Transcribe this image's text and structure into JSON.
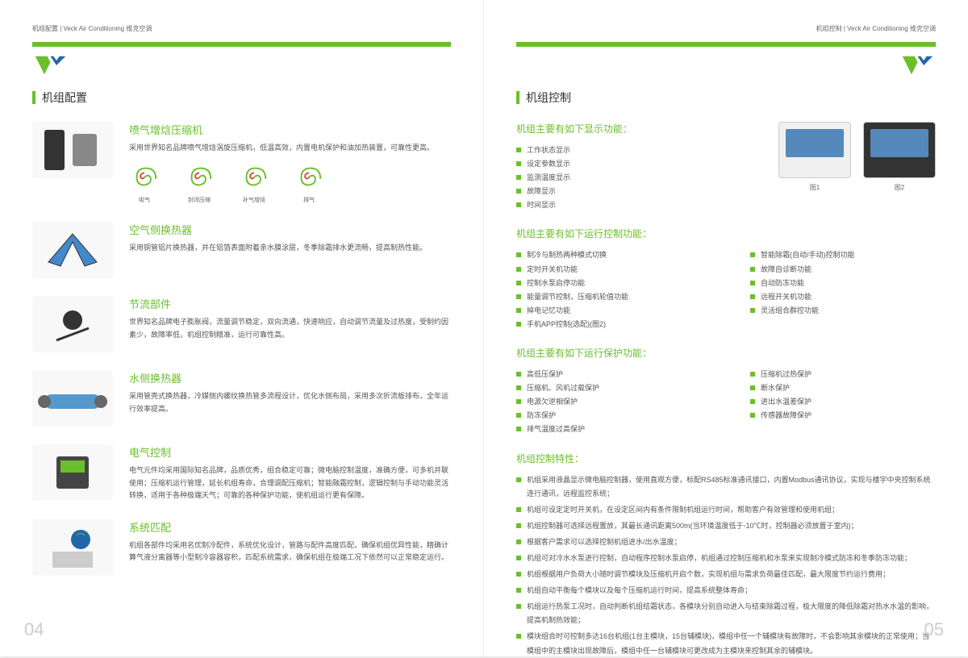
{
  "colors": {
    "accent": "#6abf2a",
    "text": "#555",
    "muted": "#666",
    "pagenum": "#ccc"
  },
  "left": {
    "header": "机组配置 | Veck Air Conditioning 维克空调",
    "title": "机组配置",
    "items": [
      {
        "title": "喷气增焓压缩机",
        "desc": "采用世界知名品牌喷气增焓涡旋压缩机，低温高效，内置电机保护和油加热装置，可靠性更高。",
        "spirals": [
          "吸气",
          "封闭压缩",
          "补气增焓",
          "排气"
        ]
      },
      {
        "title": "空气侧换热器",
        "desc": "采用铜管铝片换热器，并在铝箔表面附着亲水膜涂层，冬季除霜排水更流畅，提高制热性能。"
      },
      {
        "title": "节流部件",
        "desc": "世界知名品牌电子膨胀阀，流量调节稳定，双向流通，快速响应，自动调节流量及过热度，受制约因素少，故障率低，机组控制精准，运行可靠性高。"
      },
      {
        "title": "水侧换热器",
        "desc": "采用管壳式换热器，冷媒侧内螺纹换热管多流程设计，优化水侧布局，采用多次折流板排布，全年运行效率提高。"
      },
      {
        "title": "电气控制",
        "desc": "电气元件均采用国际知名品牌，品质优秀，组合稳定可靠；微电脑控制温度，准确方便，可多机并联使用；压缩机运行管理，延长机组寿命，合理调配压缩机；智能融霜控制，逻辑控制与手动功能灵活转换，适用于各种极端天气；可靠的各种保护功能，使机组运行更有保障。"
      },
      {
        "title": "系统匹配",
        "desc": "机组各部件均采用名优制冷配件，系统优化设计，管路与配件高度匹配，确保机组优异性能，精确计算气液分离器等小型制冷容器容积，匹配系统需求，确保机组在极端工况下依然可以正常稳定运行。"
      }
    ],
    "pagenum": "04"
  },
  "right": {
    "header": "机组控制 | Veck Air Conditioning 维克空调",
    "title": "机组控制",
    "display": {
      "title": "机组主要有如下显示功能：",
      "items": [
        "工作状态显示",
        "设定参数显示",
        "监测温度显示",
        "故障显示",
        "时间显示"
      ],
      "fig1": "图1",
      "fig2": "图2"
    },
    "control": {
      "title": "机组主要有如下运行控制功能：",
      "col1": [
        "制冷与制热两种模式切换",
        "定时开关机功能",
        "控制水泵启停功能",
        "能量调节控制，压缩机轮值功能",
        "掉电记忆功能",
        "手机APP控制(选配)(图2)"
      ],
      "col2": [
        "智能除霜(自动/手动)控制功能",
        "故障自诊断功能",
        "自动防冻功能",
        "远程开关机功能",
        "灵活组合群控功能"
      ]
    },
    "protect": {
      "title": "机组主要有如下运行保护功能：",
      "col1": [
        "高低压保护",
        "压缩机、风机过载保护",
        "电源欠逆相保护",
        "防冻保护",
        "排气温度过高保护"
      ],
      "col2": [
        "压缩机过热保护",
        "断水保护",
        "进出水温差保护",
        "传感器故障保护"
      ]
    },
    "characteristics": {
      "title": "机组控制特性：",
      "items": [
        "机组采用液晶显示微电脑控制器，使用直观方便，标配RS485标准通讯接口，内置Modbus通讯协议，实现与楼宇中央控制系统连行通讯，远程监控系统；",
        "机组可设定定时开关机，在设定区间内有条件限制机组运行时间，帮助客户有效管理和使用机组；",
        "机组控制器可选择远程置放，其最长通讯距离500m(当环境温度低于-10℃时，控制器必须放置于室内)；",
        "根据客户需求可以选择控制机组进水/出水温度；",
        "机组可对冷水水泵进行控制，自动程序控制水泵启停，机组通过控制压缩机和水泵来实现制冷模式防冻和冬季防冻功能；",
        "机组根据用户负荷大小随时调节模块及压缩机开启个数，实现机组与需求负荷最佳匹配，最大限度节约运行费用；",
        "机组自动平衡每个模块以及每个压缩机运行时间，提高系统整体寿命；",
        "机组运行热泵工况时，自动判断机组结霜状态，各模块分别自动进入与结束除霜过程，极大限度的降低除霜对热水水温的影响，提高机制热效能；",
        "模块组合时可控制多达16台机组(1台主模块，15台辅模块)，模组中任一个辅模块有故障时，不会影响其余模块的正常使用；当模组中的主模块出现故障后，模组中任一台辅模块可更改成为主模块来控制其余的辅模块。"
      ]
    },
    "pagenum": "05"
  }
}
